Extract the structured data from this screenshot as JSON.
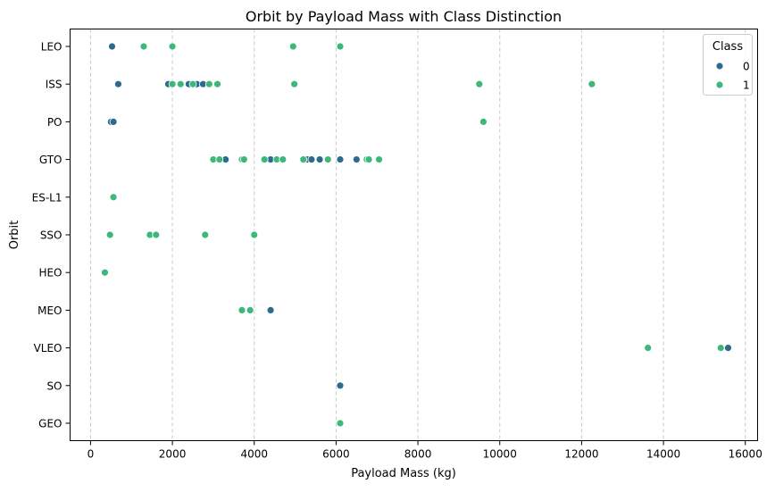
{
  "chart_data": {
    "type": "scatter",
    "title": "Orbit by Payload Mass with Class Distinction",
    "xlabel": "Payload Mass (kg)",
    "ylabel": "Orbit",
    "xlim": [
      -500,
      16300
    ],
    "xticks": [
      0,
      2000,
      4000,
      6000,
      8000,
      10000,
      12000,
      14000,
      16000
    ],
    "categories": [
      "LEO",
      "ISS",
      "PO",
      "GTO",
      "ES-L1",
      "SSO",
      "HEO",
      "MEO",
      "VLEO",
      "SO",
      "GEO"
    ],
    "grid": "x-axis dashed",
    "legend": {
      "title": "Class",
      "position": "top-right",
      "entries": [
        {
          "label": "0",
          "color": "#2d6b8e"
        },
        {
          "label": "1",
          "color": "#3db87a"
        }
      ]
    },
    "series": [
      {
        "name": "0",
        "color": "#2d6b8e",
        "points": [
          {
            "x": 525,
            "y": "LEO"
          },
          {
            "x": 677,
            "y": "ISS"
          },
          {
            "x": 1900,
            "y": "ISS"
          },
          {
            "x": 2400,
            "y": "ISS"
          },
          {
            "x": 2600,
            "y": "ISS"
          },
          {
            "x": 2750,
            "y": "ISS"
          },
          {
            "x": 500,
            "y": "PO"
          },
          {
            "x": 560,
            "y": "PO"
          },
          {
            "x": 3300,
            "y": "GTO"
          },
          {
            "x": 4400,
            "y": "GTO"
          },
          {
            "x": 5300,
            "y": "GTO"
          },
          {
            "x": 5400,
            "y": "GTO"
          },
          {
            "x": 5600,
            "y": "GTO"
          },
          {
            "x": 6100,
            "y": "GTO"
          },
          {
            "x": 6500,
            "y": "GTO"
          },
          {
            "x": 4400,
            "y": "MEO"
          },
          {
            "x": 15580,
            "y": "VLEO"
          },
          {
            "x": 6100,
            "y": "SO"
          }
        ]
      },
      {
        "name": "1",
        "color": "#3db87a",
        "points": [
          {
            "x": 1300,
            "y": "LEO"
          },
          {
            "x": 2000,
            "y": "LEO"
          },
          {
            "x": 4950,
            "y": "LEO"
          },
          {
            "x": 6100,
            "y": "LEO"
          },
          {
            "x": 2000,
            "y": "ISS"
          },
          {
            "x": 2200,
            "y": "ISS"
          },
          {
            "x": 2500,
            "y": "ISS"
          },
          {
            "x": 2900,
            "y": "ISS"
          },
          {
            "x": 3100,
            "y": "ISS"
          },
          {
            "x": 4980,
            "y": "ISS"
          },
          {
            "x": 9500,
            "y": "ISS"
          },
          {
            "x": 12250,
            "y": "ISS"
          },
          {
            "x": 9600,
            "y": "PO"
          },
          {
            "x": 3000,
            "y": "GTO"
          },
          {
            "x": 3150,
            "y": "GTO"
          },
          {
            "x": 3700,
            "y": "GTO"
          },
          {
            "x": 3750,
            "y": "GTO"
          },
          {
            "x": 4250,
            "y": "GTO"
          },
          {
            "x": 4550,
            "y": "GTO"
          },
          {
            "x": 4700,
            "y": "GTO"
          },
          {
            "x": 5200,
            "y": "GTO"
          },
          {
            "x": 5800,
            "y": "GTO"
          },
          {
            "x": 6750,
            "y": "GTO"
          },
          {
            "x": 6800,
            "y": "GTO"
          },
          {
            "x": 7050,
            "y": "GTO"
          },
          {
            "x": 560,
            "y": "ES-L1"
          },
          {
            "x": 475,
            "y": "SSO"
          },
          {
            "x": 1450,
            "y": "SSO"
          },
          {
            "x": 1600,
            "y": "SSO"
          },
          {
            "x": 2800,
            "y": "SSO"
          },
          {
            "x": 4000,
            "y": "SSO"
          },
          {
            "x": 350,
            "y": "HEO"
          },
          {
            "x": 3700,
            "y": "MEO"
          },
          {
            "x": 3900,
            "y": "MEO"
          },
          {
            "x": 13620,
            "y": "VLEO"
          },
          {
            "x": 15400,
            "y": "VLEO"
          },
          {
            "x": 6100,
            "y": "GEO"
          }
        ]
      }
    ]
  }
}
